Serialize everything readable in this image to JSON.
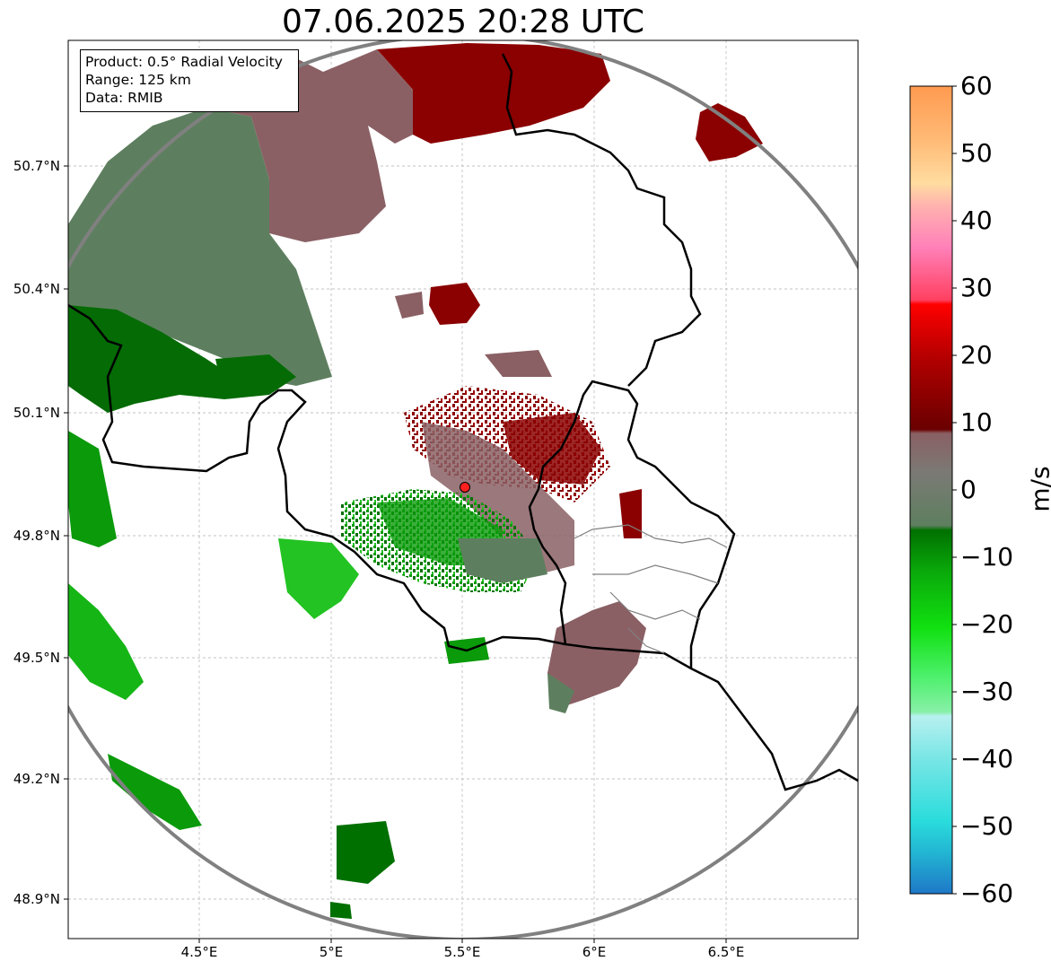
{
  "title": "07.06.2025 20:28 UTC",
  "info": {
    "product": "Product: 0.5° Radial Velocity",
    "range": "Range: 125 km",
    "source": "Data: RMIB"
  },
  "lat_ticks": [
    "50.7°N",
    "50.4°N",
    "50.1°N",
    "49.8°N",
    "49.5°N",
    "49.2°N",
    "48.9°N"
  ],
  "lon_ticks": [
    "4.5°E",
    "5°E",
    "5.5°E",
    "6°E",
    "6.5°E"
  ],
  "colorbar": {
    "label": "m/s",
    "ticks": [
      "60",
      "50",
      "40",
      "30",
      "20",
      "10",
      "0",
      "−10",
      "−20",
      "−30",
      "−40",
      "−50",
      "−60"
    ],
    "min": -60,
    "max": 60
  },
  "map": {
    "lon_range": [
      4.0,
      7.0
    ],
    "lat_range": [
      48.8,
      51.0
    ],
    "radar_site": {
      "lon": 5.505,
      "lat": 49.915
    },
    "range_ring_color": "#808080",
    "border_color": "#000000"
  },
  "chart_data": {
    "type": "heatmap",
    "title": "07.06.2025 20:28 UTC",
    "xticks": [
      "4.5°E",
      "5°E",
      "5.5°E",
      "6°E",
      "6.5°E"
    ],
    "yticks": [
      "50.7°N",
      "50.4°N",
      "50.1°N",
      "49.8°N",
      "49.5°N",
      "49.2°N",
      "48.9°N"
    ],
    "colorbar_range": [
      -60,
      60
    ],
    "colorbar_unit": "m/s",
    "grid": true
  }
}
